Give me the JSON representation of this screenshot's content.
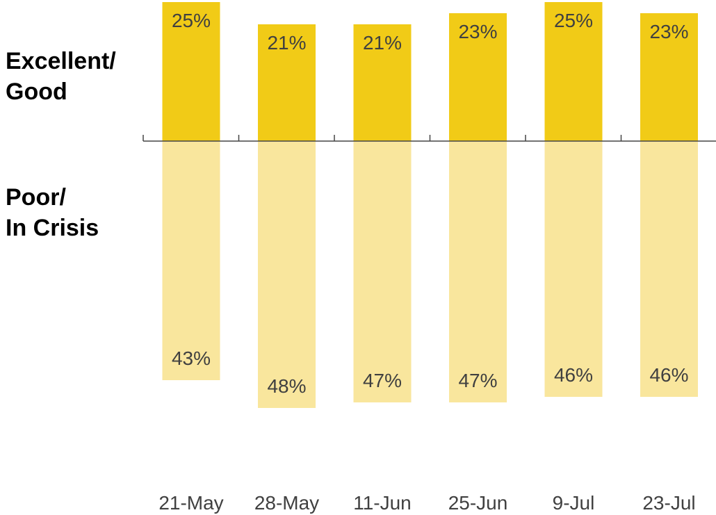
{
  "row_labels": {
    "positive_line1": "Excellent/",
    "positive_line2": "Good",
    "negative_line1": "Poor/",
    "negative_line2": "In Crisis"
  },
  "colors": {
    "positive": "#F1CB17",
    "negative": "#F9E69D",
    "axis": "#444444",
    "label_text": "#404040"
  },
  "chart_data": {
    "type": "bar",
    "categories": [
      "21-May",
      "28-May",
      "11-Jun",
      "25-Jun",
      "9-Jul",
      "23-Jul"
    ],
    "series": [
      {
        "name": "Excellent/ Good",
        "values": [
          25,
          21,
          21,
          23,
          25,
          23
        ]
      },
      {
        "name": "Poor/ In Crisis",
        "values": [
          43,
          48,
          47,
          47,
          46,
          46
        ]
      }
    ],
    "value_labels_positive": [
      "25%",
      "21%",
      "21%",
      "23%",
      "25%",
      "23%"
    ],
    "value_labels_negative": [
      "43%",
      "48%",
      "47%",
      "47%",
      "46%",
      "46%"
    ],
    "layout": "diverging",
    "grid": false,
    "legend": "none"
  }
}
